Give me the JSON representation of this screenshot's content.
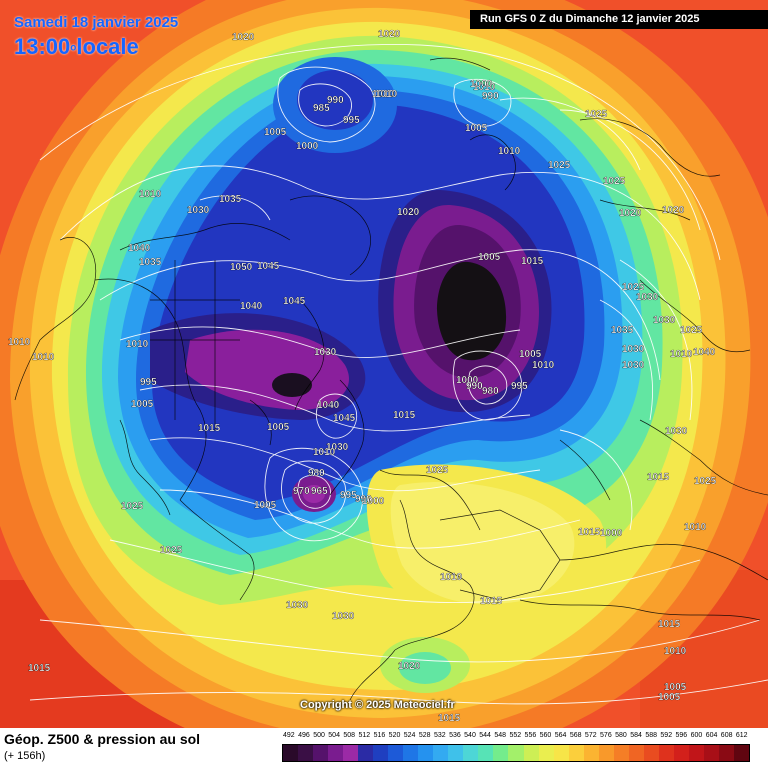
{
  "header": {
    "date": "Samedi 18 janvier 2025",
    "time": "13:00",
    "time_suffix": "locale",
    "run": "Run GFS 0 Z du Dimanche 12 janvier 2025"
  },
  "copyright": "Copyright © 2025 Meteociel.fr",
  "footer": {
    "title": "Géop. Z500 & pression au sol",
    "subtitle": "(+ 156h)"
  },
  "legend": {
    "values": [
      "492",
      "496",
      "500",
      "504",
      "508",
      "512",
      "516",
      "520",
      "524",
      "528",
      "532",
      "536",
      "540",
      "544",
      "548",
      "552",
      "556",
      "560",
      "564",
      "568",
      "572",
      "576",
      "580",
      "584",
      "588",
      "592",
      "596",
      "600",
      "604",
      "608",
      "612"
    ],
    "colors": [
      "#2a0a2a",
      "#3a0f45",
      "#55126b",
      "#7a1c8f",
      "#9b2aa6",
      "#2b2ba5",
      "#1f3fc0",
      "#1d5ad8",
      "#1f76e6",
      "#2592ef",
      "#33aaf1",
      "#3fc1ea",
      "#4dd6d6",
      "#57e3b6",
      "#74ec8c",
      "#a3f06a",
      "#cdef55",
      "#eaee4f",
      "#f7e548",
      "#fbcf3c",
      "#fbb431",
      "#f9992a",
      "#f57e26",
      "#f06523",
      "#e94c20",
      "#df321d",
      "#d3201b",
      "#c11519",
      "#a80f17",
      "#8a0a14",
      "#600510"
    ]
  },
  "isobar_labels": [
    "1020",
    "1020",
    "1010",
    "1010",
    "990",
    "985",
    "1010",
    "995",
    "1000",
    "990",
    "1025",
    "1005",
    "1005",
    "1010",
    "1025",
    "1000",
    "1025",
    "1035",
    "1030",
    "1020",
    "1020",
    "1020",
    "1005",
    "1015",
    "1010",
    "1040",
    "1035",
    "1050",
    "1045",
    "1040",
    "1045",
    "1025",
    "1035",
    "1030",
    "1010",
    "1010",
    "1030",
    "1030",
    "1025",
    "1030",
    "1005",
    "1010",
    "1010",
    "1030",
    "1040",
    "1010",
    "1000",
    "990",
    "980",
    "995",
    "995",
    "1005",
    "1015",
    "1015",
    "1040",
    "1045",
    "1005",
    "1030",
    "1030",
    "1010",
    "1015",
    "1025",
    "1025",
    "980",
    "970",
    "965",
    "995",
    "990",
    "1000",
    "1005",
    "1010",
    "1015",
    "1010",
    "1015",
    "1030",
    "1030",
    "1025",
    "1020",
    "1025",
    "1015",
    "1015",
    "1010",
    "1005",
    "1005",
    "1000",
    "1015"
  ]
}
